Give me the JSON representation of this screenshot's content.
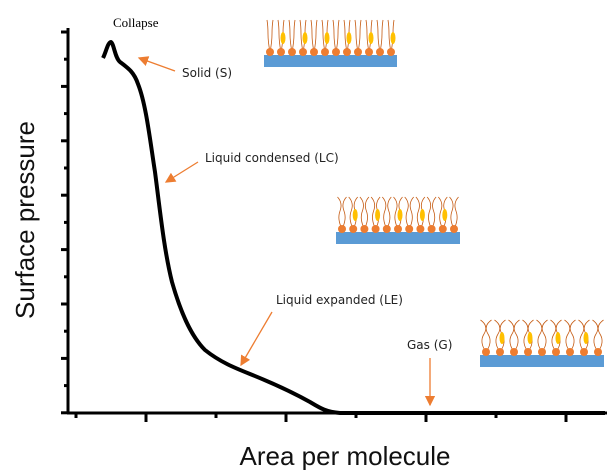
{
  "axes": {
    "x_label": "Area per molecule",
    "y_label": "Surface pressure"
  },
  "annotations": {
    "collapse": "Collapse",
    "solid": "Solid (S)",
    "liquid_condensed": "Liquid condensed (LC)",
    "liquid_expanded": "Liquid expanded (LE)",
    "gas": "Gas (G)"
  }
}
